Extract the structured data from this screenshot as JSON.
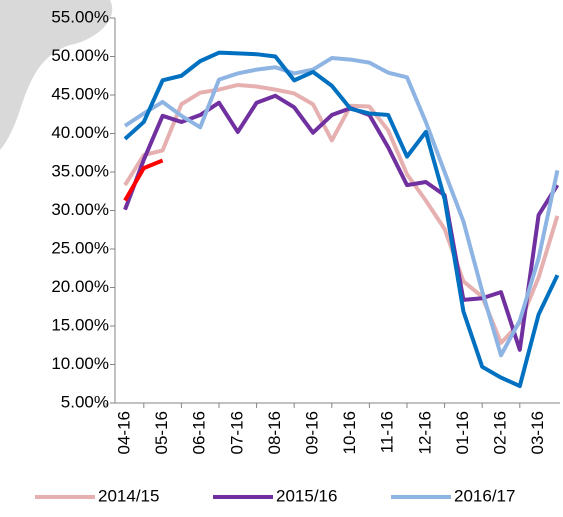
{
  "chart_data": {
    "type": "line",
    "categories": [
      "04-16",
      null,
      "05-16",
      null,
      "06-16",
      null,
      "07-16",
      null,
      "08-16",
      null,
      "09-16",
      null,
      "10-16",
      null,
      "11-16",
      null,
      "12-16",
      null,
      "01-16",
      null,
      "02-16",
      null,
      "03-16",
      null
    ],
    "series": [
      {
        "name": "2014/15",
        "color": "#e6b0b0",
        "values": [
          33.3,
          37.2,
          37.8,
          43.8,
          45.3,
          45.7,
          46.3,
          46.1,
          45.7,
          45.2,
          43.8,
          39.1,
          43.6,
          43.5,
          40.4,
          34.7,
          31.3,
          27.6,
          20.8,
          18.8,
          12.8,
          15.4,
          21.3,
          29.3
        ]
      },
      {
        "name": "2015/16",
        "color": "#7030a0",
        "values": [
          30.1,
          36.6,
          42.3,
          41.5,
          42.4,
          44.0,
          40.2,
          44.0,
          44.9,
          43.4,
          40.1,
          42.4,
          43.3,
          42.4,
          38.2,
          33.3,
          33.7,
          32.0,
          18.4,
          18.6,
          19.4,
          11.9,
          29.4,
          33.3
        ]
      },
      {
        "name": "2016/17",
        "color": "#8eb4e3",
        "values": [
          41.0,
          42.6,
          44.1,
          42.3,
          40.8,
          47.0,
          47.8,
          48.3,
          48.6,
          47.8,
          48.3,
          49.8,
          49.6,
          49.2,
          47.9,
          47.3,
          41.5,
          35.0,
          28.6,
          19.5,
          11.2,
          15.7,
          23.8,
          35.2
        ]
      },
      {
        "color": "#0070c0",
        "values": [
          39.3,
          41.5,
          46.9,
          47.5,
          49.4,
          50.5,
          50.4,
          50.3,
          50.0,
          46.9,
          48.0,
          46.2,
          43.2,
          42.6,
          42.4,
          37.0,
          40.2,
          31.5,
          16.9,
          9.7,
          8.3,
          7.2,
          16.5,
          21.6
        ]
      },
      {
        "color": "#ff0000",
        "values": [
          31.3,
          35.5,
          36.5,
          null,
          null,
          null,
          null,
          null,
          null,
          null,
          null,
          null,
          null,
          null,
          null,
          null,
          null,
          null,
          null,
          null,
          null,
          null,
          null,
          null
        ]
      }
    ],
    "ylim": [
      5,
      55
    ],
    "yticks": [
      {
        "value": 5,
        "label": "5.00%"
      },
      {
        "value": 10,
        "label": "10.00%"
      },
      {
        "value": 15,
        "label": "15.00%"
      },
      {
        "value": 20,
        "label": "20.00%"
      },
      {
        "value": 25,
        "label": "25.00%"
      },
      {
        "value": 30,
        "label": "30.00%"
      },
      {
        "value": 35,
        "label": "35.00%"
      },
      {
        "value": 40,
        "label": "40.00%"
      },
      {
        "value": 45,
        "label": "45.00%"
      },
      {
        "value": 50,
        "label": "50.00%"
      },
      {
        "value": 55,
        "label": "55.00%"
      }
    ],
    "legend": "bottom"
  }
}
